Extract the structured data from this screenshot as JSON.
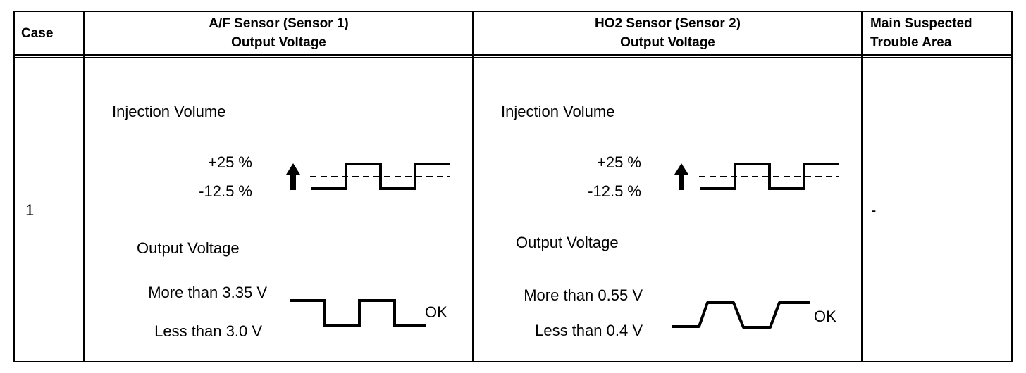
{
  "table": {
    "headers": {
      "case": "Case",
      "af_sensor_line1": "A/F Sensor (Sensor 1)",
      "af_sensor_line2": "Output Voltage",
      "ho2_sensor_line1": "HO2 Sensor (Sensor 2)",
      "ho2_sensor_line2": "Output Voltage",
      "trouble_line1": "Main Suspected",
      "trouble_line2": "Trouble Area"
    },
    "rows": [
      {
        "case": "1",
        "af": {
          "injection_label": "Injection Volume",
          "plus": "+25 %",
          "minus": "-12.5 %",
          "output_label": "Output Voltage",
          "high": "More than 3.35 V",
          "low": "Less than 3.0 V",
          "result": "OK"
        },
        "ho2": {
          "injection_label": "Injection Volume",
          "plus": "+25 %",
          "minus": "-12.5 %",
          "output_label": "Output Voltage",
          "high": "More than 0.55 V",
          "low": "Less than 0.4 V",
          "result": "OK"
        },
        "trouble_area": "-"
      }
    ]
  }
}
